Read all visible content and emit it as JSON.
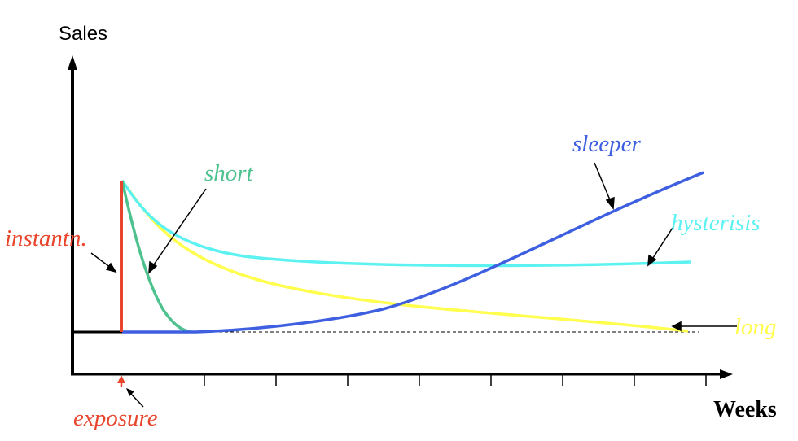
{
  "axis": {
    "y_label": "Sales",
    "x_label": "Weeks"
  },
  "labels": {
    "instantaneous": "instantn.",
    "short": "short",
    "long": "long",
    "sleeper": "sleeper",
    "hysteresis": "hysterisis",
    "exposure": "exposure"
  },
  "colors": {
    "instantaneous": "#e8452c",
    "short": "#4dc28f",
    "long": "#ffff4d",
    "sleeper": "#3d5fe0",
    "hysteresis": "#5cf2f2",
    "exposure": "#e8452c",
    "axis": "#000000"
  },
  "x_ticks": 8
}
